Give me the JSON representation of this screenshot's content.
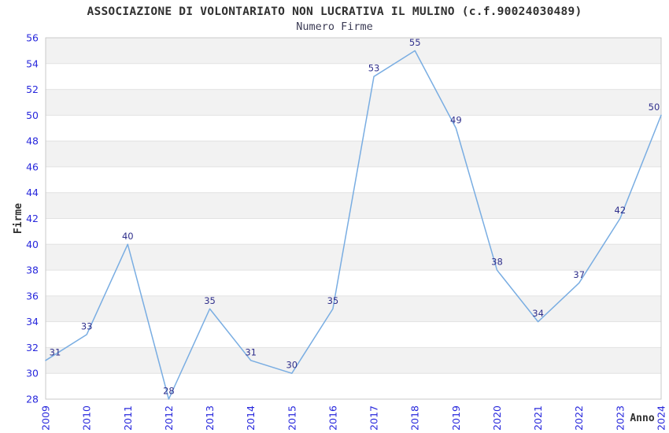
{
  "header": {
    "title": "ASSOCIAZIONE DI VOLONTARIATO NON LUCRATIVA IL MULINO (c.f.90024030489)",
    "subtitle": "Numero Firme"
  },
  "chart_data": {
    "type": "line",
    "title": "ASSOCIAZIONE DI VOLONTARIATO NON LUCRATIVA IL MULINO (c.f.90024030489)",
    "subtitle": "Numero Firme",
    "xlabel": "Anno",
    "ylabel": "Firme",
    "categories": [
      "2009",
      "2010",
      "2011",
      "2012",
      "2013",
      "2014",
      "2015",
      "2016",
      "2017",
      "2018",
      "2019",
      "2020",
      "2021",
      "2022",
      "2023",
      "2024"
    ],
    "values": [
      31,
      33,
      40,
      28,
      35,
      31,
      30,
      35,
      53,
      55,
      49,
      38,
      34,
      37,
      42,
      50
    ],
    "ylim": [
      28,
      56
    ],
    "ytick_step": 2,
    "grid": "horizontal-bands-alternating",
    "legend": "none",
    "x_tick_rotation": -90,
    "data_labels_visible": true,
    "colors": {
      "line": "#79ade2",
      "band_dark": "#f2f2f2",
      "band_light": "#ffffff",
      "gridline": "#e2e2e2",
      "plot_border": "#c9c9c9",
      "tick_label": "#2828dc",
      "data_label": "#30308c",
      "title": "#303030",
      "subtitle": "#3c3c55",
      "axis_title": "#303030",
      "background": "#ffffff"
    }
  }
}
